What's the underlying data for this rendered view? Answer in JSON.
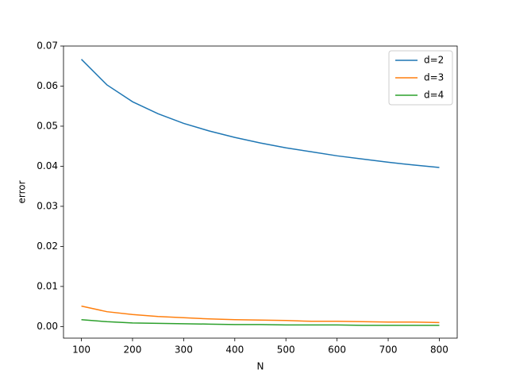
{
  "chart_data": {
    "type": "line",
    "xlabel": "N",
    "ylabel": "error",
    "x": [
      100,
      150,
      200,
      250,
      300,
      350,
      400,
      450,
      500,
      550,
      600,
      650,
      700,
      750,
      800
    ],
    "series": [
      {
        "name": "d=2",
        "color": "#1f77b4",
        "values": [
          0.0667,
          0.0603,
          0.0561,
          0.0531,
          0.0507,
          0.0488,
          0.0472,
          0.0458,
          0.0446,
          0.0436,
          0.0426,
          0.0418,
          0.041,
          0.0403,
          0.0397
        ]
      },
      {
        "name": "d=3",
        "color": "#ff7f0e",
        "values": [
          0.0051,
          0.0037,
          0.003,
          0.0025,
          0.0022,
          0.0019,
          0.0017,
          0.0016,
          0.0015,
          0.0013,
          0.0013,
          0.0012,
          0.0011,
          0.0011,
          0.001
        ]
      },
      {
        "name": "d=4",
        "color": "#2ca02c",
        "values": [
          0.0017,
          0.0012,
          0.0009,
          0.0008,
          0.0007,
          0.0006,
          0.0005,
          0.0005,
          0.0004,
          0.0004,
          0.0004,
          0.0003,
          0.0003,
          0.0003,
          0.0003
        ]
      }
    ],
    "xlim": [
      65,
      835
    ],
    "xticks": [
      100,
      200,
      300,
      400,
      500,
      600,
      700,
      800
    ],
    "ylim": [
      -0.0029,
      0.07
    ],
    "yticks": [
      {
        "value": 0,
        "label": "0.00"
      },
      0.01,
      0.02,
      0.03,
      0.04,
      0.05,
      0.06,
      0.07
    ],
    "grid": false,
    "legend": "upper right"
  }
}
